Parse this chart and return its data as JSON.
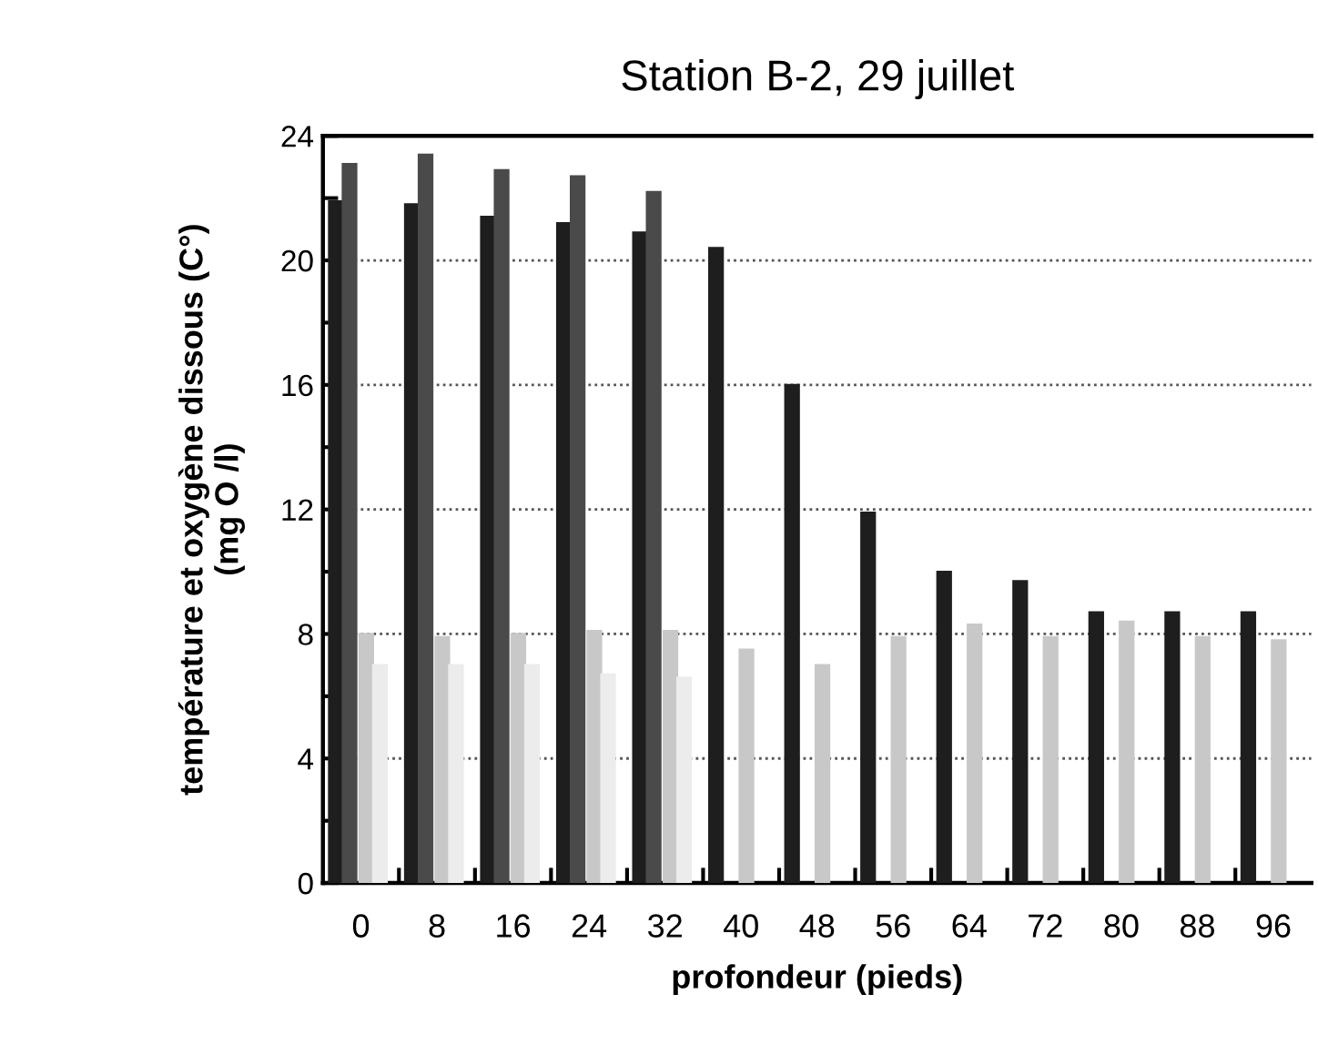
{
  "chart_data": {
    "type": "bar",
    "title": "Station B-2, 29 juillet",
    "xlabel": "profondeur (pieds)",
    "ylabel": "température et oxygène dissous (C°)\n(mg O /l)",
    "categories": [
      "0",
      "8",
      "16",
      "24",
      "32",
      "40",
      "48",
      "56",
      "64",
      "72",
      "80",
      "88",
      "96"
    ],
    "series": [
      {
        "color": "#1e1e1e",
        "values": [
          21.9,
          21.8,
          21.4,
          21.2,
          20.9,
          20.4,
          16.0,
          11.9,
          10.0,
          9.7,
          8.7,
          8.7,
          8.7
        ]
      },
      {
        "color": "#4a4a4a",
        "values": [
          23.1,
          23.4,
          22.9,
          22.7,
          22.2,
          null,
          null,
          null,
          null,
          null,
          null,
          null,
          null
        ]
      },
      {
        "color": "#c8c8c8",
        "values": [
          8.0,
          7.9,
          8.0,
          8.1,
          8.1,
          7.5,
          7.0,
          7.9,
          8.3,
          7.9,
          8.4,
          7.9,
          7.8
        ]
      },
      {
        "color": "#ececec",
        "values": [
          7.0,
          7.0,
          7.0,
          6.7,
          6.6,
          null,
          null,
          null,
          null,
          null,
          null,
          null,
          null
        ]
      }
    ],
    "ylim": [
      0,
      24
    ],
    "yticks": [
      0,
      {
        "value": 2,
        "label": null
      },
      4,
      {
        "value": 6,
        "label": null
      },
      8,
      {
        "value": 10,
        "label": null
      },
      12,
      {
        "value": 14,
        "label": null
      },
      16,
      {
        "value": 18,
        "label": null
      },
      20,
      {
        "value": 22,
        "label": null
      },
      24
    ],
    "grid": "y",
    "legend": false
  }
}
